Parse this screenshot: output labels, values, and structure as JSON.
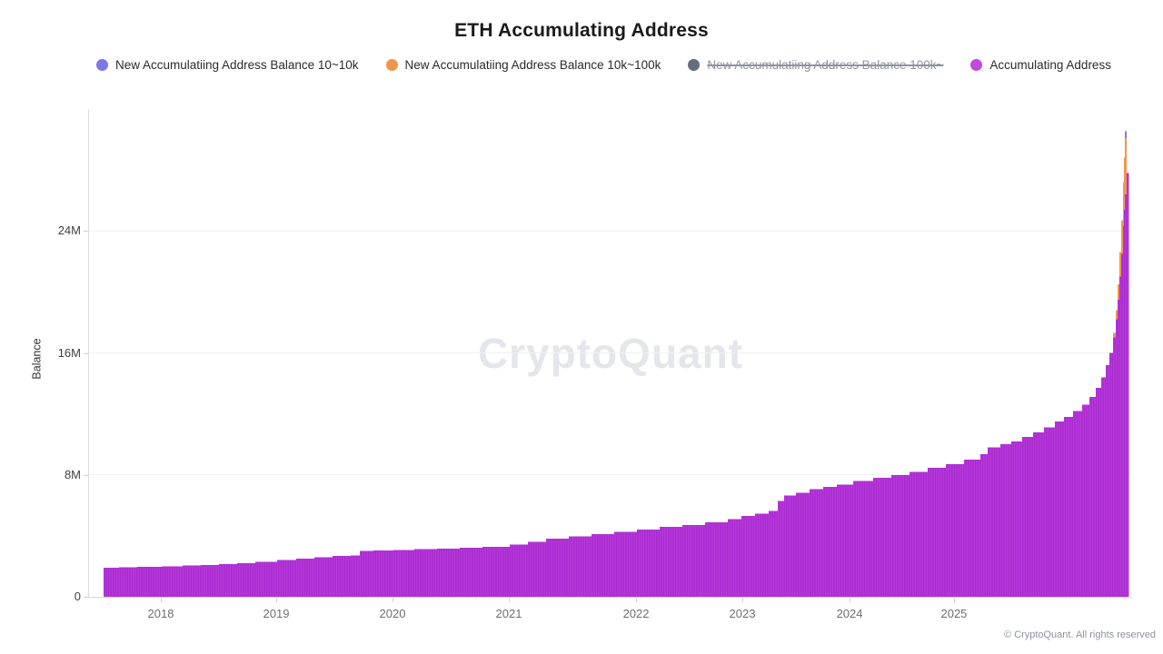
{
  "title": "ETH Accumulating Address",
  "watermark": "CryptoQuant",
  "footer": "© CryptoQuant. All rights reserved",
  "legend": {
    "items": [
      {
        "label": "New Accumulatiing Address Balance 10~10k",
        "color": "#7b78e9",
        "disabled": false
      },
      {
        "label": "New Accumulatiing Address Balance 10k~100k",
        "color": "#f0964c",
        "disabled": false
      },
      {
        "label": "New Accumulatiing Address Balance 100k~",
        "color": "#676e79",
        "disabled": true
      },
      {
        "label": "Accumulating Address",
        "color": "#c24adf",
        "disabled": false
      }
    ]
  },
  "colors": {
    "bar_magenta": "#a92bd0",
    "bar_magenta_stripe": "#b83cdb",
    "bar_orange": "#f0964c",
    "bar_blue": "#7b78e9",
    "gridline": "#f1f1f3",
    "axis": "#d6d6d6"
  },
  "chart_data": {
    "type": "bar",
    "stacked": true,
    "title": "ETH Accumulating Address",
    "xlabel": "",
    "ylabel": "Balance",
    "unit": "ETH addresses balance, values in millions",
    "ylim": [
      0,
      32000000
    ],
    "grid": "horizontal",
    "legend_position": "top",
    "y_ticks": [
      {
        "label": "0",
        "value": 0
      },
      {
        "label": "8M",
        "value": 8
      },
      {
        "label": "16M",
        "value": 16
      },
      {
        "label": "24M",
        "value": 24
      }
    ],
    "x_ticks": [
      {
        "label": "2018",
        "t": 0.0697
      },
      {
        "label": "2019",
        "t": 0.1803
      },
      {
        "label": "2020",
        "t": 0.2918
      },
      {
        "label": "2021",
        "t": 0.4033
      },
      {
        "label": "2022",
        "t": 0.5253
      },
      {
        "label": "2023",
        "t": 0.6272
      },
      {
        "label": "2024",
        "t": 0.73
      },
      {
        "label": "2025",
        "t": 0.8301
      }
    ],
    "series_names": [
      "Accumulating Address",
      "New Accumulatiing Address Balance 10k~100k",
      "New Accumulatiing Address Balance 10~10k"
    ],
    "columns": [
      "t (0-1 along time axis, mid-2017 to late-2025)",
      "accumulating_M",
      "new_10k_100k_M",
      "new_10_10k_M"
    ],
    "points": [
      [
        0.0,
        1.92,
        0,
        0
      ],
      [
        0.0151,
        1.95,
        0,
        0
      ],
      [
        0.0328,
        1.97,
        0,
        0
      ],
      [
        0.0568,
        2.0,
        0,
        0
      ],
      [
        0.0772,
        2.05,
        0,
        0
      ],
      [
        0.0949,
        2.1,
        0,
        0
      ],
      [
        0.1127,
        2.15,
        0,
        0
      ],
      [
        0.1304,
        2.22,
        0,
        0
      ],
      [
        0.1482,
        2.3,
        0,
        0
      ],
      [
        0.1695,
        2.42,
        0,
        0
      ],
      [
        0.1881,
        2.5,
        0,
        0
      ],
      [
        0.2059,
        2.6,
        0,
        0
      ],
      [
        0.2236,
        2.68,
        0,
        0
      ],
      [
        0.2413,
        2.72,
        0,
        0
      ],
      [
        0.2502,
        3.0,
        0,
        0
      ],
      [
        0.2635,
        3.03,
        0,
        0
      ],
      [
        0.2831,
        3.06,
        0,
        0
      ],
      [
        0.3035,
        3.12,
        0,
        0
      ],
      [
        0.3256,
        3.16,
        0,
        0
      ],
      [
        0.3478,
        3.22,
        0,
        0
      ],
      [
        0.37,
        3.28,
        0,
        0
      ],
      [
        0.3966,
        3.42,
        0,
        0
      ],
      [
        0.4143,
        3.62,
        0,
        0
      ],
      [
        0.4321,
        3.8,
        0,
        0
      ],
      [
        0.4543,
        3.95,
        0,
        0
      ],
      [
        0.4765,
        4.1,
        0,
        0
      ],
      [
        0.4987,
        4.25,
        0,
        0
      ],
      [
        0.5208,
        4.42,
        0,
        0
      ],
      [
        0.543,
        4.58,
        0,
        0
      ],
      [
        0.5652,
        4.72,
        0,
        0
      ],
      [
        0.5874,
        4.9,
        0,
        0
      ],
      [
        0.6096,
        5.1,
        0,
        0
      ],
      [
        0.6229,
        5.3,
        0,
        0
      ],
      [
        0.6362,
        5.45,
        0,
        0
      ],
      [
        0.6495,
        5.62,
        0,
        0
      ],
      [
        0.6583,
        6.3,
        0,
        0
      ],
      [
        0.6646,
        6.65,
        0,
        0
      ],
      [
        0.6761,
        6.82,
        0,
        0
      ],
      [
        0.6894,
        7.05,
        0,
        0
      ],
      [
        0.7027,
        7.2,
        0,
        0
      ],
      [
        0.7161,
        7.35,
        0,
        0
      ],
      [
        0.732,
        7.6,
        0,
        0
      ],
      [
        0.7515,
        7.8,
        0,
        0
      ],
      [
        0.7693,
        8.0,
        0,
        0
      ],
      [
        0.787,
        8.2,
        0,
        0
      ],
      [
        0.8048,
        8.45,
        0,
        0
      ],
      [
        0.8225,
        8.7,
        0,
        0
      ],
      [
        0.8403,
        9.0,
        0,
        0
      ],
      [
        0.8562,
        9.35,
        0,
        0
      ],
      [
        0.8633,
        9.8,
        0,
        0
      ],
      [
        0.8758,
        10.0,
        0,
        0
      ],
      [
        0.8864,
        10.2,
        0,
        0
      ],
      [
        0.8971,
        10.5,
        0,
        0
      ],
      [
        0.9077,
        10.8,
        0,
        0
      ],
      [
        0.9184,
        11.1,
        0,
        0
      ],
      [
        0.929,
        11.5,
        0,
        0
      ],
      [
        0.9379,
        11.8,
        0,
        0
      ],
      [
        0.9468,
        12.2,
        0,
        0
      ],
      [
        0.9556,
        12.6,
        0,
        0
      ],
      [
        0.9627,
        13.1,
        0,
        0
      ],
      [
        0.9689,
        13.7,
        0,
        0
      ],
      [
        0.9743,
        14.4,
        0,
        0
      ],
      [
        0.9787,
        15.2,
        0,
        0
      ],
      [
        0.9822,
        16.0,
        0,
        0
      ],
      [
        0.9858,
        17.0,
        0.3,
        0
      ],
      [
        0.9885,
        18.2,
        0.6,
        0
      ],
      [
        0.9902,
        19.5,
        1.0,
        0
      ],
      [
        0.992,
        21.0,
        1.6,
        0
      ],
      [
        0.9938,
        22.5,
        2.2,
        0
      ],
      [
        0.9956,
        24.3,
        2.9,
        0
      ],
      [
        0.9964,
        25.4,
        3.4,
        0
      ],
      [
        0.9973,
        26.4,
        3.7,
        0.45
      ],
      [
        0.9991,
        27.8,
        0,
        0
      ]
    ]
  }
}
